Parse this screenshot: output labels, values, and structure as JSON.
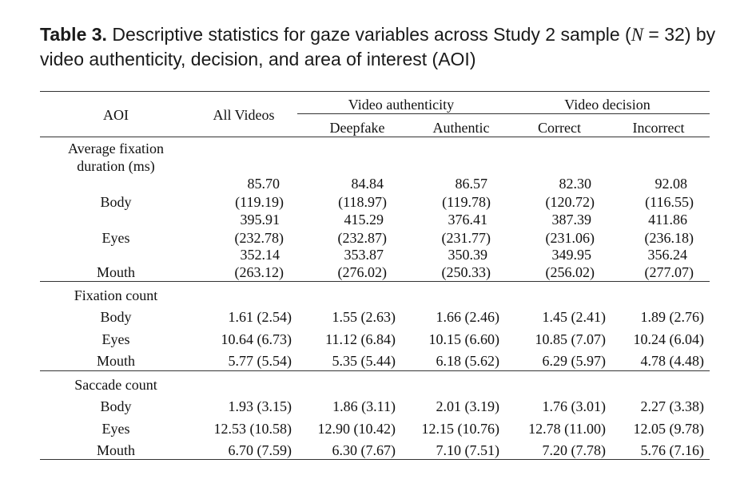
{
  "caption": {
    "label": "Table 3.",
    "text_before_n": " Descriptive statistics for gaze variables across Study 2 sample (",
    "n_symbol": "N",
    "text_after_n": " = 32) by video authenticity, decision, and area of interest (AOI)"
  },
  "header": {
    "aoi": "AOI",
    "all_videos": "All Videos",
    "group_authenticity": "Video authenticity",
    "group_decision": "Video decision",
    "deepfake": "Deepfake",
    "authentic": "Authentic",
    "correct": "Correct",
    "incorrect": "Incorrect"
  },
  "sections": {
    "fixation_duration": {
      "title_line1": "Average fixation",
      "title_line2": "duration (ms)",
      "rows": [
        {
          "label": "Body",
          "means": [
            "85.70",
            "84.84",
            "86.57",
            "82.30",
            "92.08"
          ],
          "sds": [
            "(119.19)",
            "(118.97)",
            "(119.78)",
            "(120.72)",
            "(116.55)"
          ]
        },
        {
          "label": "Eyes",
          "means": [
            "395.91",
            "415.29",
            "376.41",
            "387.39",
            "411.86"
          ],
          "sds": [
            "(232.78)",
            "(232.87)",
            "(231.77)",
            "(231.06)",
            "(236.18)"
          ]
        },
        {
          "label": "Mouth",
          "means": [
            "352.14",
            "353.87",
            "350.39",
            "349.95",
            "356.24"
          ],
          "sds": [
            "(263.12)",
            "(276.02)",
            "(250.33)",
            "(256.02)",
            "(277.07)"
          ]
        }
      ]
    },
    "fixation_count": {
      "title": "Fixation count",
      "rows": [
        {
          "label": "Body",
          "values": [
            "1.61 (2.54)",
            "1.55 (2.63)",
            "1.66 (2.46)",
            "1.45 (2.41)",
            "1.89 (2.76)"
          ]
        },
        {
          "label": "Eyes",
          "values": [
            "10.64 (6.73)",
            "11.12 (6.84)",
            "10.15 (6.60)",
            "10.85 (7.07)",
            "10.24 (6.04)"
          ]
        },
        {
          "label": "Mouth",
          "values": [
            "5.77 (5.54)",
            "5.35 (5.44)",
            "6.18 (5.62)",
            "6.29 (5.97)",
            "4.78 (4.48)"
          ]
        }
      ]
    },
    "saccade_count": {
      "title": "Saccade count",
      "rows": [
        {
          "label": "Body",
          "values": [
            "1.93 (3.15)",
            "1.86 (3.11)",
            "2.01 (3.19)",
            "1.76 (3.01)",
            "2.27 (3.38)"
          ]
        },
        {
          "label": "Eyes",
          "values": [
            "12.53 (10.58)",
            "12.90 (10.42)",
            "12.15 (10.76)",
            "12.78 (11.00)",
            "12.05 (9.78)"
          ]
        },
        {
          "label": "Mouth",
          "values": [
            "6.70 (7.59)",
            "6.30 (7.67)",
            "7.10 (7.51)",
            "7.20 (7.78)",
            "5.76 (7.16)"
          ]
        }
      ]
    }
  }
}
